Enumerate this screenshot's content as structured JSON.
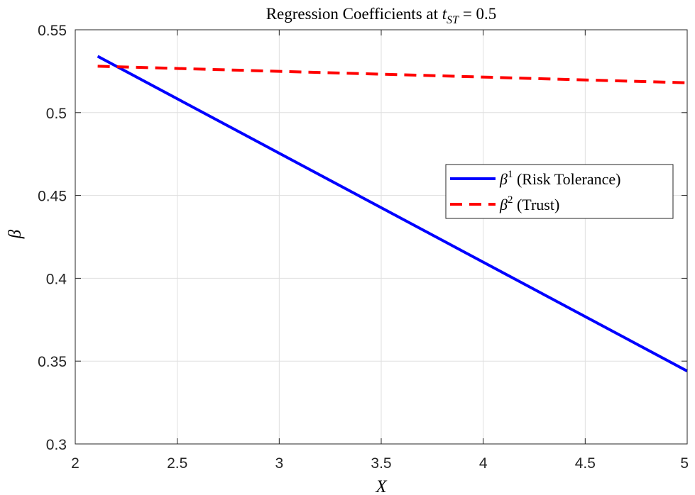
{
  "chart_data": {
    "type": "line",
    "title": {
      "prefix": "Regression Coefficients at ",
      "var": "t",
      "sub": "ST",
      "suffix": " = 0.5"
    },
    "xlabel": "X",
    "ylabel": "β",
    "xlim": [
      2,
      5
    ],
    "ylim": [
      0.3,
      0.55
    ],
    "xticks": [
      2,
      2.5,
      3,
      3.5,
      4,
      4.5,
      5
    ],
    "xtick_labels": [
      "2",
      "2.5",
      "3",
      "3.5",
      "4",
      "4.5",
      "5"
    ],
    "yticks": [
      0.3,
      0.35,
      0.4,
      0.45,
      0.5,
      0.55
    ],
    "ytick_labels": [
      "0.3",
      "0.35",
      "0.4",
      "0.45",
      "0.5",
      "0.55"
    ],
    "grid": true,
    "legend_position": "right",
    "series": [
      {
        "name": "β¹ (Risk Tolerance)",
        "legend_symbol": "β",
        "legend_sup": "1",
        "legend_text": "(Risk Tolerance)",
        "color": "#0000ff",
        "style": "solid",
        "x": [
          2.11,
          5.0
        ],
        "y": [
          0.534,
          0.344
        ]
      },
      {
        "name": "β² (Trust)",
        "legend_symbol": "β",
        "legend_sup": "2",
        "legend_text": "(Trust)",
        "color": "#ff0000",
        "style": "dashed",
        "x": [
          2.11,
          5.0
        ],
        "y": [
          0.528,
          0.518
        ]
      }
    ]
  }
}
